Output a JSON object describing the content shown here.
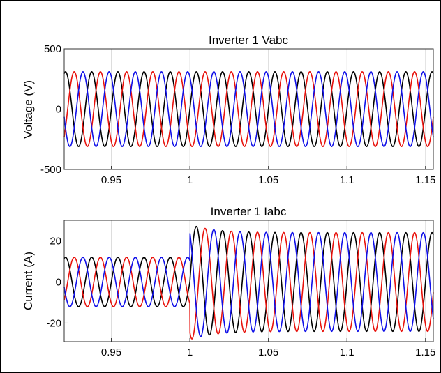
{
  "chart_data": [
    {
      "type": "line",
      "title": "Inverter 1 Vabc",
      "xlabel": "",
      "ylabel": "Voltage (V)",
      "xlim": [
        0.92,
        1.155
      ],
      "ylim": [
        -500,
        500
      ],
      "xticks": [
        "0.95",
        "1",
        "1.05",
        "1.1",
        "1.15"
      ],
      "yticks": [
        "-500",
        "0",
        "500"
      ],
      "grid": true,
      "frequency_hz": 60,
      "series": [
        {
          "color": "#000000",
          "amplitude": 310,
          "phase_deg": 0
        },
        {
          "color": "#e8120c",
          "amplitude": 310,
          "phase_deg": -120
        },
        {
          "color": "#1010e8",
          "amplitude": 310,
          "phase_deg": 120
        }
      ]
    },
    {
      "type": "line",
      "title": "Inverter 1 Iabc",
      "xlabel": "",
      "ylabel": "Current (A)",
      "xlim": [
        0.92,
        1.155
      ],
      "ylim": [
        -29,
        30
      ],
      "xticks": [
        "0.95",
        "1",
        "1.05",
        "1.1",
        "1.15"
      ],
      "yticks": [
        "-20",
        "0",
        "20"
      ],
      "grid": true,
      "frequency_hz": 60,
      "step_time": 1.0,
      "amplitude_before": 12,
      "amplitude_after": 24,
      "overshoot_after": 4,
      "series": [
        {
          "color": "#000000",
          "phase_deg": 0
        },
        {
          "color": "#e8120c",
          "phase_deg": -120
        },
        {
          "color": "#1010e8",
          "phase_deg": 120
        }
      ]
    }
  ]
}
